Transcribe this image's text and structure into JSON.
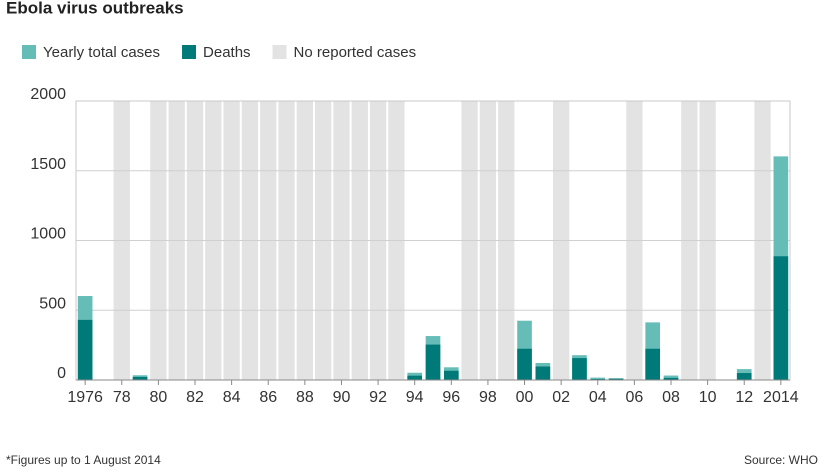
{
  "chart_data": {
    "type": "bar",
    "title": "Ebola virus outbreaks",
    "categories": [
      "1976",
      null,
      "78",
      null,
      "80",
      null,
      "82",
      null,
      "84",
      null,
      "86",
      null,
      "88",
      null,
      "90",
      null,
      "92",
      null,
      "94",
      null,
      "96",
      null,
      "98",
      null,
      "00",
      null,
      "02",
      null,
      "04",
      null,
      "06",
      null,
      "08",
      null,
      "10",
      null,
      "12",
      null,
      "2014"
    ],
    "series": [
      {
        "name": "Yearly total cases",
        "color": "#66bdb8",
        "values": [
          602,
          1,
          null,
          34,
          null,
          null,
          null,
          null,
          null,
          null,
          null,
          null,
          null,
          null,
          null,
          null,
          null,
          null,
          52,
          315,
          91,
          null,
          null,
          null,
          425,
          122,
          null,
          178,
          17,
          12,
          null,
          413,
          32,
          null,
          null,
          1,
          78,
          null,
          1603
        ]
      },
      {
        "name": "Deaths",
        "color": "#007a78",
        "values": [
          431,
          1,
          null,
          22,
          null,
          null,
          null,
          null,
          null,
          null,
          null,
          null,
          null,
          null,
          null,
          null,
          null,
          null,
          31,
          254,
          66,
          null,
          null,
          null,
          224,
          97,
          null,
          157,
          7,
          10,
          null,
          224,
          15,
          null,
          null,
          1,
          50,
          null,
          887
        ]
      }
    ],
    "no_data": {
      "name": "No reported cases",
      "color": "#e3e3e3"
    },
    "ylim": [
      0,
      2000
    ],
    "yticks": [
      0,
      500,
      1000,
      1500,
      2000
    ],
    "grid": true,
    "note": "*Figures up to 1 August 2014",
    "source": "Source: WHO"
  }
}
